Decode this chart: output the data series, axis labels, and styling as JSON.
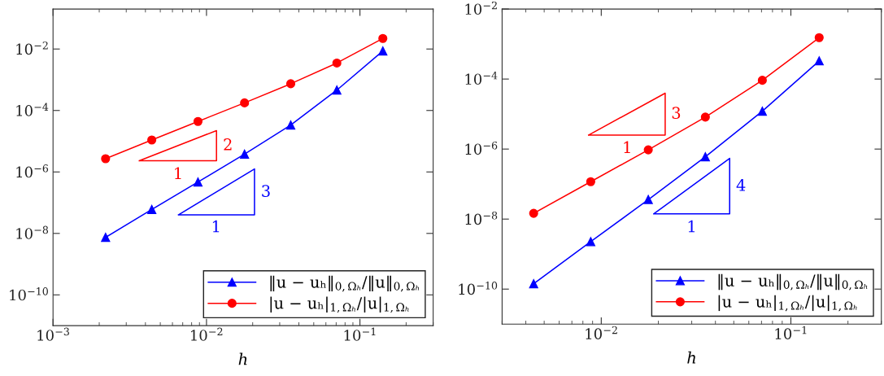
{
  "chart_data": [
    {
      "type": "line",
      "xlabel": "h",
      "log": "xy",
      "grid": false,
      "legend": "bottom right",
      "xlim": [
        0.001,
        0.3
      ],
      "ylim": [
        1e-11,
        0.2
      ],
      "xticks": [
        {
          "value": 0.001,
          "label": "10$^{−3}$"
        },
        {
          "value": 0.01,
          "label": "10$^{−2}$"
        },
        {
          "value": 0.1,
          "label": "10$^{−1}$"
        }
      ],
      "yticks": [
        {
          "value": 1e-10,
          "label": "10$^{−10}$"
        },
        {
          "value": 1e-08,
          "label": "10$^{−8}$"
        },
        {
          "value": 1e-06,
          "label": "10$^{−6}$"
        },
        {
          "value": 0.0001,
          "label": "10$^{−4}$"
        },
        {
          "value": 0.01,
          "label": "10$^{−2}$"
        }
      ],
      "x": [
        0.0022,
        0.0044,
        0.0088,
        0.0177,
        0.0354,
        0.0707,
        0.141
      ],
      "series": [
        {
          "name": "‖u − uₕ‖$_{0,Ωₕ}$/‖u‖$_{0,Ωₕ}$",
          "color": "#0000ff",
          "marker": "triangle",
          "values": [
            7.4e-09,
            6e-08,
            4.7e-07,
            3.8e-06,
            3.35e-05,
            0.00046,
            0.0086
          ]
        },
        {
          "name": "|u − uₕ|$_{1,Ωₕ}$/|u|$_{1,Ωₕ}$",
          "color": "#ff0000",
          "marker": "circle",
          "values": [
            2.7e-06,
            1.1e-05,
            4.4e-05,
            0.000177,
            0.00074,
            0.0035,
            0.022
          ]
        }
      ],
      "annotations": [
        "2",
        "1",
        "3",
        "1"
      ]
    },
    {
      "type": "line",
      "xlabel": "h",
      "log": "xy",
      "grid": false,
      "legend": "bottom right",
      "xlim": [
        0.003,
        0.3
      ],
      "ylim": [
        1e-11,
        0.01
      ],
      "xticks": [
        {
          "value": 0.01,
          "label": "10$^{−2}$"
        },
        {
          "value": 0.1,
          "label": "10$^{−1}$"
        }
      ],
      "yticks": [
        {
          "value": 1e-10,
          "label": "10$^{−10}$"
        },
        {
          "value": 1e-08,
          "label": "10$^{−8}$"
        },
        {
          "value": 1e-06,
          "label": "10$^{−6}$"
        },
        {
          "value": 0.0001,
          "label": "10$^{−4}$"
        },
        {
          "value": 0.01,
          "label": "10$^{−2}$"
        }
      ],
      "x": [
        0.0044,
        0.0088,
        0.0177,
        0.0354,
        0.0707,
        0.141
      ],
      "series": [
        {
          "name": "‖u − uₕ‖$_{0,Ωₕ}$/‖u‖$_{0,Ωₕ}$",
          "color": "#0000ff",
          "marker": "triangle",
          "values": [
            1.42e-10,
            2.26e-09,
            3.6e-08,
            6e-07,
            1.21e-05,
            0.00033
          ]
        },
        {
          "name": "|u − uₕ|$_{1,Ωₕ}$/|u|$_{1,Ωₕ}$",
          "color": "#ff0000",
          "marker": "circle",
          "values": [
            1.46e-08,
            1.17e-07,
            9.5e-07,
            8.2e-06,
            9.2e-05,
            0.00152
          ]
        }
      ],
      "annotations": [
        "3",
        "1",
        "4",
        "1"
      ]
    }
  ]
}
